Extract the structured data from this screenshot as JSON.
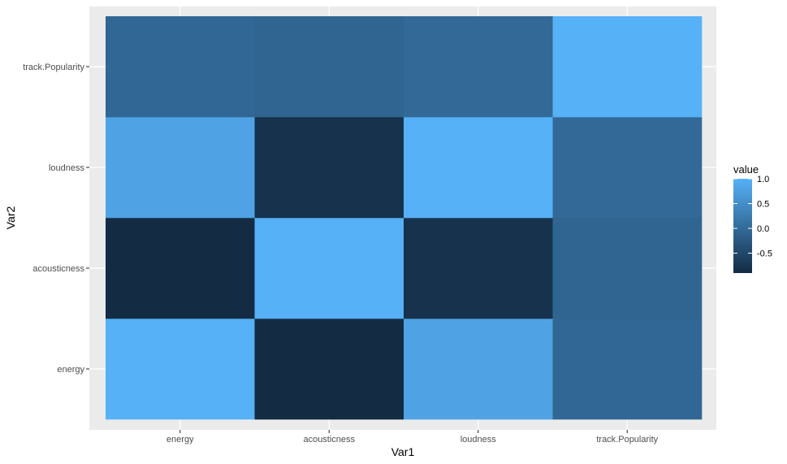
{
  "chart_data": {
    "type": "heatmap",
    "xlabel": "Var1",
    "ylabel": "Var2",
    "x_categories": [
      "energy",
      "acousticness",
      "loudness",
      "track.Popularity"
    ],
    "y_categories": [
      "energy",
      "acousticness",
      "loudness",
      "track.Popularity"
    ],
    "values": [
      [
        1.0,
        -0.9,
        0.8,
        -0.05
      ],
      [
        -0.9,
        1.0,
        -0.8,
        -0.08
      ],
      [
        0.8,
        -0.8,
        1.0,
        -0.02
      ],
      [
        -0.05,
        -0.08,
        -0.02,
        1.0
      ]
    ],
    "legend": {
      "title": "value",
      "ticks": [
        1.0,
        0.5,
        0.0,
        -0.5
      ],
      "tick_labels": [
        "1.0",
        "0.5",
        "0.0",
        "-0.5"
      ],
      "range": [
        -0.9,
        1.0
      ],
      "low_color": "#132B43",
      "high_color": "#56B1F7",
      "position": "right"
    },
    "grid": true,
    "panel_background": "#EBEBEB"
  }
}
